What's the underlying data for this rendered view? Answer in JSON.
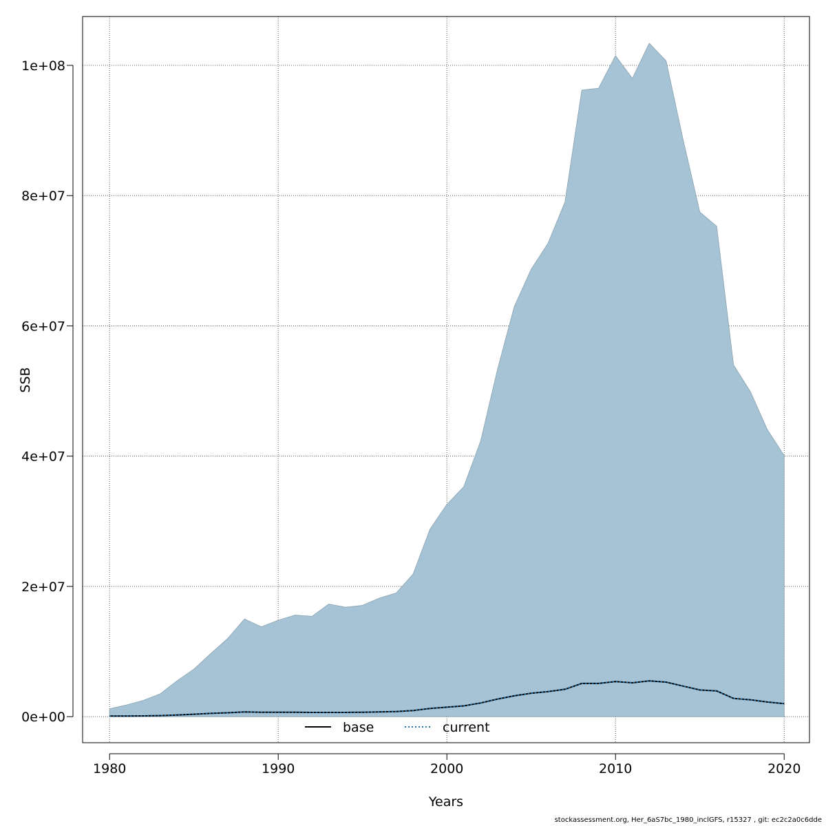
{
  "chart_data": {
    "type": "area",
    "xlabel": "Years",
    "ylabel": "SSB",
    "xlim": [
      1978.4,
      2021.5
    ],
    "ylim": [
      -4000000,
      107500000
    ],
    "x_ticks": [
      1980,
      1990,
      2000,
      2010,
      2020
    ],
    "x_tick_labels": [
      "1980",
      "1990",
      "2000",
      "2010",
      "2020"
    ],
    "y_ticks": [
      0,
      20000000,
      40000000,
      60000000,
      80000000,
      100000000
    ],
    "y_tick_labels": [
      "0e+00",
      "2e+07",
      "4e+07",
      "6e+07",
      "8e+07",
      "1e+08"
    ],
    "grid": true,
    "legend_position": "bottom-center",
    "x": [
      1980,
      1981,
      1982,
      1983,
      1984,
      1985,
      1986,
      1987,
      1988,
      1989,
      1990,
      1991,
      1992,
      1993,
      1994,
      1995,
      1996,
      1997,
      1998,
      1999,
      2000,
      2001,
      2002,
      2003,
      2004,
      2005,
      2006,
      2007,
      2008,
      2009,
      2010,
      2011,
      2012,
      2013,
      2014,
      2015,
      2016,
      2017,
      2018,
      2019,
      2020
    ],
    "band": {
      "lower": [
        0,
        0,
        0,
        0,
        0,
        0,
        0,
        0,
        0,
        0,
        0,
        0,
        0,
        0,
        0,
        0,
        0,
        0,
        0,
        0,
        0,
        0,
        0,
        0,
        0,
        0,
        0,
        0,
        0,
        0,
        0,
        0,
        0,
        0,
        0,
        0,
        0,
        0,
        0,
        0,
        0
      ],
      "upper": [
        1200000,
        1800000,
        2500000,
        3500000,
        5500000,
        7300000,
        9700000,
        12000000,
        15000000,
        13800000,
        14800000,
        15600000,
        15400000,
        17300000,
        16800000,
        17100000,
        18200000,
        19000000,
        21900000,
        28800000,
        32600000,
        35300000,
        42300000,
        53300000,
        63000000,
        68700000,
        72700000,
        79000000,
        96200000,
        96500000,
        101500000,
        98000000,
        103400000,
        100700000,
        88700000,
        77500000,
        75300000,
        54000000,
        49900000,
        44100000,
        40100000
      ],
      "color": "#a5c3d4",
      "edge_color": "#8aa2b0"
    },
    "series": [
      {
        "name": "base",
        "line_style": "solid",
        "color": "#000000",
        "values": [
          100000,
          100000,
          120000,
          160000,
          250000,
          380000,
          500000,
          600000,
          720000,
          680000,
          680000,
          680000,
          650000,
          650000,
          650000,
          680000,
          720000,
          780000,
          950000,
          1250000,
          1450000,
          1650000,
          2100000,
          2700000,
          3200000,
          3600000,
          3850000,
          4200000,
          5100000,
          5100000,
          5400000,
          5200000,
          5500000,
          5300000,
          4700000,
          4100000,
          3950000,
          2800000,
          2600000,
          2250000,
          2000000
        ]
      },
      {
        "name": "current",
        "line_style": "dotted",
        "color": "#1f6fa8",
        "values": [
          100000,
          100000,
          120000,
          160000,
          250000,
          380000,
          500000,
          600000,
          720000,
          680000,
          680000,
          680000,
          650000,
          650000,
          650000,
          680000,
          720000,
          780000,
          950000,
          1250000,
          1450000,
          1650000,
          2100000,
          2700000,
          3200000,
          3600000,
          3850000,
          4200000,
          5100000,
          5100000,
          5400000,
          5200000,
          5500000,
          5300000,
          4700000,
          4100000,
          3950000,
          2800000,
          2600000,
          2250000,
          2000000
        ]
      }
    ]
  },
  "footnote": "stockassessment.org, Her_6aS7bc_1980_inclGFS, r15327 , git: ec2c2a0c6dde"
}
